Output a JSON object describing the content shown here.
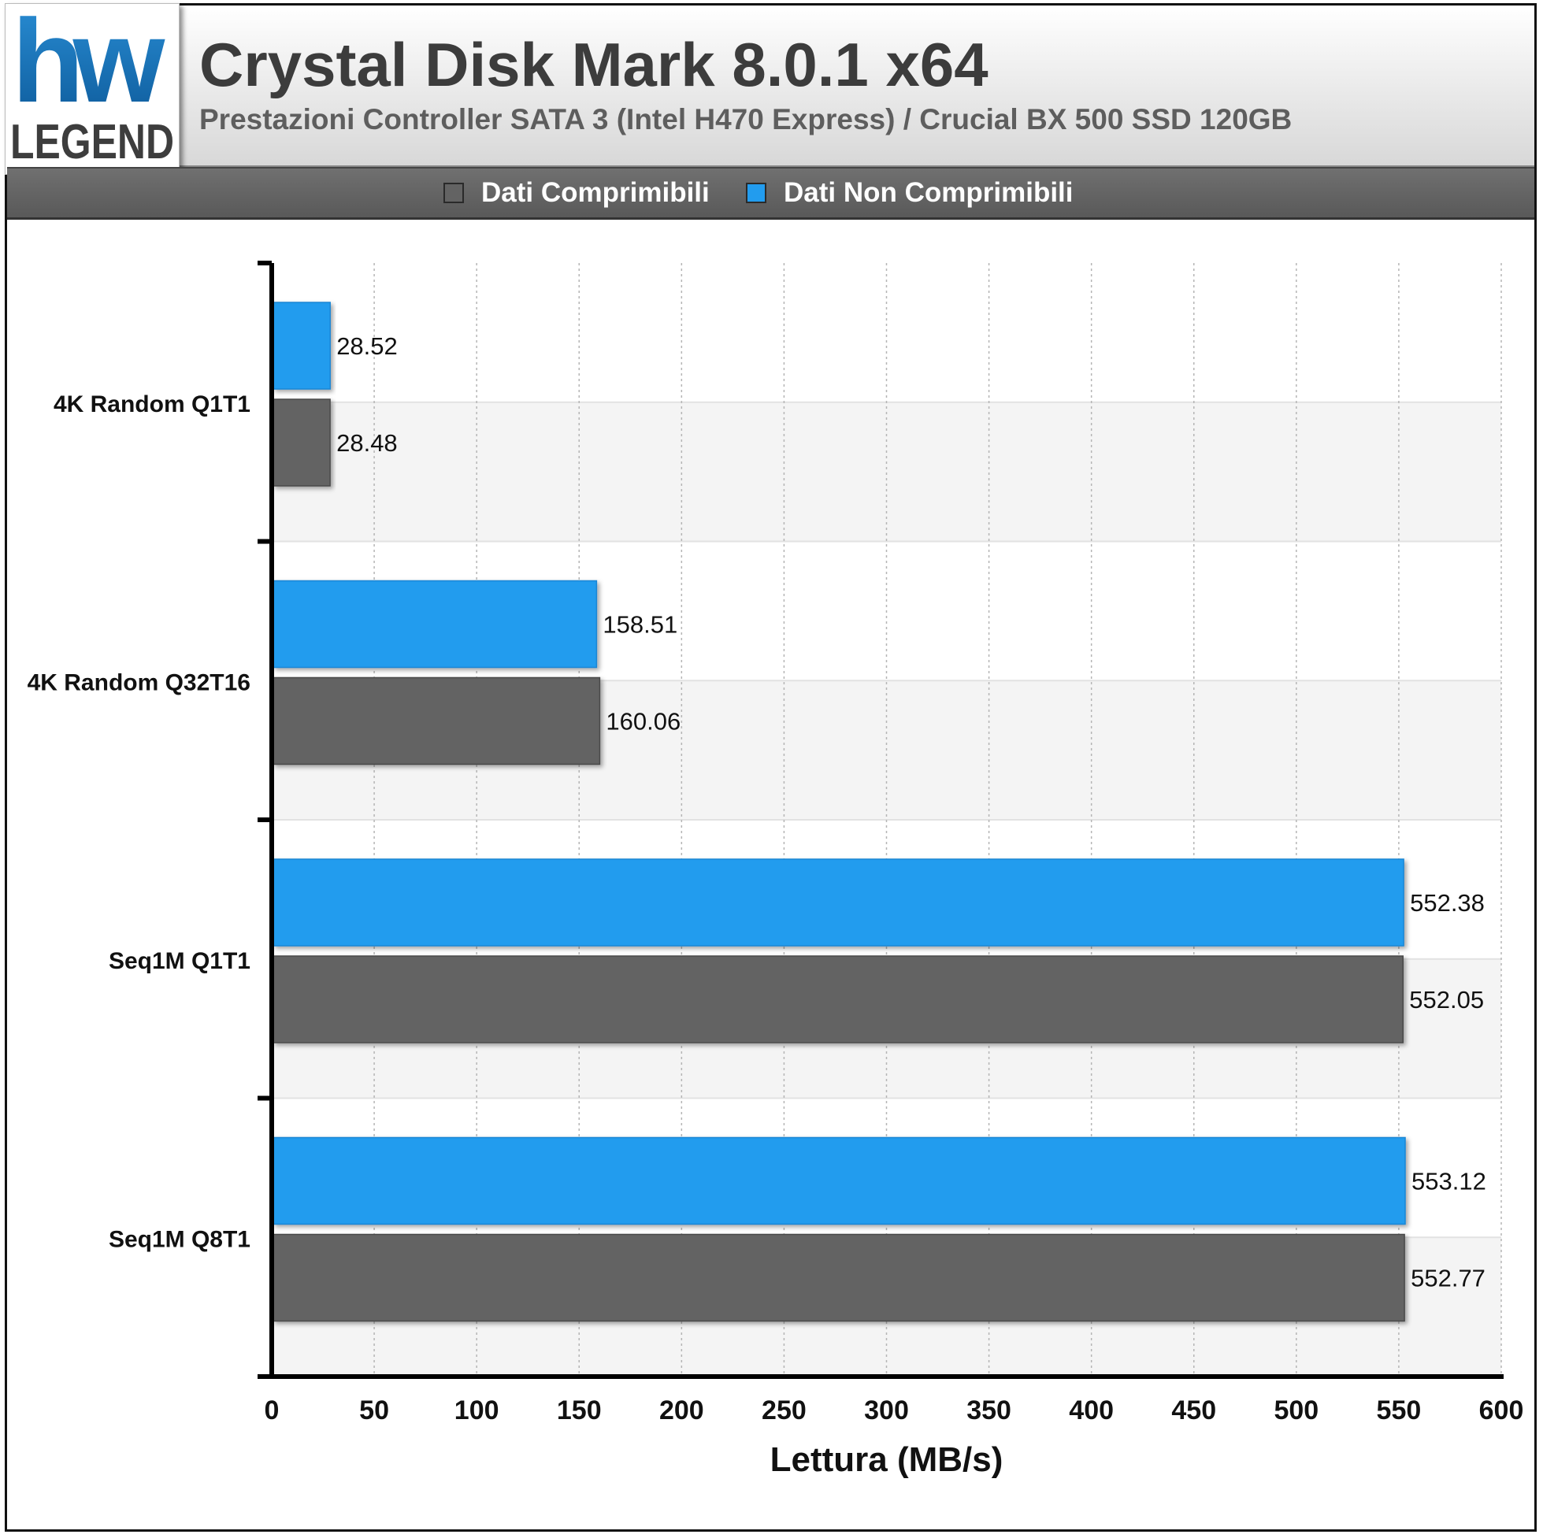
{
  "header": {
    "title": "Crystal Disk Mark 8.0.1 x64",
    "subtitle": "Prestazioni Controller SATA 3 (Intel H470 Express) / Crucial BX 500 SSD 120GB",
    "logo_text_top": "hw",
    "logo_text_bottom": "LEGEND"
  },
  "legend": {
    "items": [
      {
        "label": "Dati Comprimibili",
        "color": "#636363"
      },
      {
        "label": "Dati Non Comprimibili",
        "color": "#229cee"
      }
    ]
  },
  "chart_data": {
    "type": "bar",
    "orientation": "horizontal",
    "categories": [
      "4K Random Q1T1",
      "4K Random Q32T16",
      "Seq1M Q1T1",
      "Seq1M Q8T1"
    ],
    "series": [
      {
        "name": "Dati Non Comprimibili",
        "color": "#229cee",
        "values": [
          28.52,
          158.51,
          552.38,
          553.12
        ],
        "labels": [
          "28.52",
          "158.51",
          "552.38",
          "553.12"
        ]
      },
      {
        "name": "Dati Comprimibili",
        "color": "#636363",
        "values": [
          28.48,
          160.06,
          552.05,
          552.77
        ],
        "labels": [
          "28.48",
          "160.06",
          "552.05",
          "552.77"
        ]
      }
    ],
    "xlabel": "Lettura (MB/s)",
    "ylabel": "",
    "xlim": [
      0,
      600
    ],
    "xticks": [
      0,
      50,
      100,
      150,
      200,
      250,
      300,
      350,
      400,
      450,
      500,
      550,
      600
    ],
    "grid": "vertical dotted",
    "legend_position": "top"
  }
}
